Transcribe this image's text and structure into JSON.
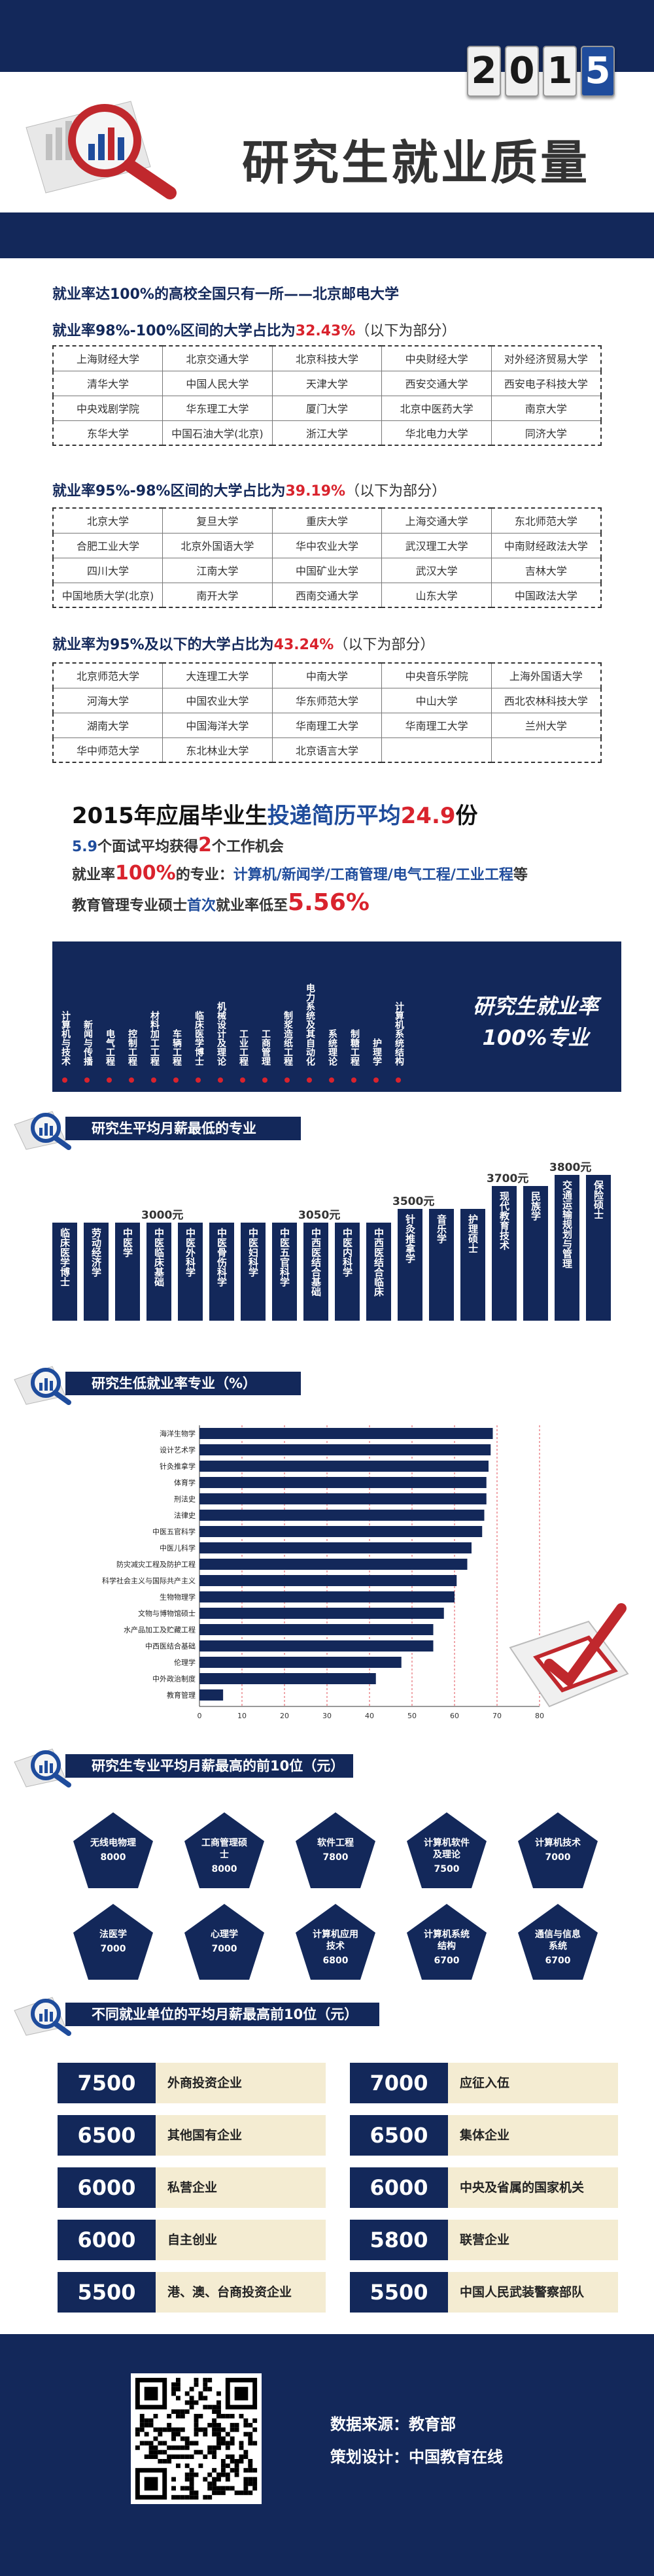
{
  "header": {
    "year_digits": [
      "2",
      "0",
      "1",
      "5"
    ],
    "title": "研究生就业质量"
  },
  "intro": {
    "line1": "就业率达100%的高校全国只有一所——北京邮电大学",
    "sec1_prefix": "就业率98%-100%区间的大学占比为",
    "sec1_pct": "32.43%",
    "sec1_suffix": "（以下为部分）",
    "sec1_rows": [
      [
        "上海财经大学",
        "北京交通大学",
        "北京科技大学",
        "中央财经大学",
        "对外经济贸易大学"
      ],
      [
        "清华大学",
        "中国人民大学",
        "天津大学",
        "西安交通大学",
        "西安电子科技大学"
      ],
      [
        "中央戏剧学院",
        "华东理工大学",
        "厦门大学",
        "北京中医药大学",
        "南京大学"
      ],
      [
        "东华大学",
        "中国石油大学(北京)",
        "浙江大学",
        "华北电力大学",
        "同济大学"
      ]
    ],
    "sec2_prefix": "就业率95%-98%区间的大学占比为",
    "sec2_pct": "39.19%",
    "sec2_suffix": "（以下为部分）",
    "sec2_rows": [
      [
        "北京大学",
        "复旦大学",
        "重庆大学",
        "上海交通大学",
        "东北师范大学"
      ],
      [
        "合肥工业大学",
        "北京外国语大学",
        "华中农业大学",
        "武汉理工大学",
        "中南财经政法大学"
      ],
      [
        "四川大学",
        "江南大学",
        "中国矿业大学",
        "武汉大学",
        "吉林大学"
      ],
      [
        "中国地质大学(北京)",
        "南开大学",
        "西南交通大学",
        "山东大学",
        "中国政法大学"
      ]
    ],
    "sec3_prefix": "就业率为95%及以下的大学占比为",
    "sec3_pct": "43.24%",
    "sec3_suffix": "（以下为部分）",
    "sec3_rows": [
      [
        "北京师范大学",
        "大连理工大学",
        "中南大学",
        "中央音乐学院",
        "上海外国语大学"
      ],
      [
        "河海大学",
        "中国农业大学",
        "华东师范大学",
        "中山大学",
        "西北农林科技大学"
      ],
      [
        "湖南大学",
        "中国海洋大学",
        "华南理工大学",
        "华南理工大学",
        "兰州大学"
      ],
      [
        "华中师范大学",
        "东北林业大学",
        "北京语言大学",
        "",
        ""
      ]
    ]
  },
  "stats": {
    "line1_a": "2015年应届毕业生",
    "line1_b": "投递简历平均",
    "line1_c": "24.9",
    "line1_d": "份",
    "line2_a": "5.9",
    "line2_b": "个面试平均获得",
    "line2_c": "2",
    "line2_d": "个工作机会",
    "line3_a": "就业率",
    "line3_b": "100%",
    "line3_c": "的专业：",
    "line3_d": "计算机/新闻学/工商管理/电气工程/工业工程",
    "line3_e": "等",
    "line4_a": "教育管理专业硕士",
    "line4_b": "首次",
    "line4_c": "就业率低至",
    "line4_d": "5.56%"
  },
  "majors": {
    "label_line1": "研究生就业率",
    "label_line2": "100%专业",
    "items": [
      "计算机与技术",
      "新闻与传播",
      "电气工程",
      "控制工程",
      "材料加工工程",
      "车辆工程",
      "临床医学博士",
      "机械设计及理论",
      "工业工程",
      "工商管理",
      "制浆造纸工程",
      "电力系统及其自动化",
      "系统理论",
      "制糖工程",
      "护理学",
      "计算机系统结构"
    ]
  },
  "low_salary": {
    "title": "研究生平均月薪最低的专业",
    "bars": [
      {
        "label": "临床医学博士",
        "value": 2800
      },
      {
        "label": "劳动经济学",
        "value": 2800
      },
      {
        "label": "中医学",
        "value": 2800
      },
      {
        "label": "中医临床基础",
        "value": 3000
      },
      {
        "label": "中医外科学",
        "value": 3000
      },
      {
        "label": "中医骨伤科学",
        "value": 3000
      },
      {
        "label": "中医妇科学",
        "value": 3000
      },
      {
        "label": "中医五官科学",
        "value": 3000
      },
      {
        "label": "中西医结合基础",
        "value": 3050
      },
      {
        "label": "中医内科学",
        "value": 3300
      },
      {
        "label": "中西医结合临床",
        "value": 3300
      },
      {
        "label": "针灸推拿学",
        "value": 3500
      },
      {
        "label": "音乐学",
        "value": 3500
      },
      {
        "label": "护理硕士",
        "value": 3500
      },
      {
        "label": "现代教育技术",
        "value": 3700
      },
      {
        "label": "民族学",
        "value": 3700
      },
      {
        "label": "交通运输规划与管理",
        "value": 3800
      },
      {
        "label": "保险硕士",
        "value": 3800
      }
    ],
    "value_labels": [
      "3000元",
      "3050元",
      "3500元",
      "3700元",
      "3800元"
    ]
  },
  "chart_data": {
    "type": "bar",
    "title": "研究生低就业率专业（%）",
    "orientation": "horizontal",
    "categories": [
      "海洋生物学",
      "设计艺术学",
      "针灸推拿学",
      "体育学",
      "刑法史",
      "法律史",
      "中医五官科学",
      "中医儿科学",
      "防灾减灾工程及防护工程",
      "科学社会主义与国际共产主义",
      "生物物理学",
      "文物与博物馆硕士",
      "水产品加工及贮藏工程",
      "中西医结合基础",
      "伦理学",
      "中外政治制度",
      "教育管理"
    ],
    "values": [
      69,
      68.5,
      68,
      67.5,
      67.5,
      67,
      66.5,
      64,
      63,
      60.5,
      60,
      57.5,
      55,
      55,
      47.5,
      41.5,
      5.56
    ],
    "xlim": [
      0,
      80
    ],
    "xticks": [
      0,
      10,
      20,
      30,
      40,
      50,
      60,
      70,
      80
    ]
  },
  "high_salary": {
    "title": "研究生专业平均月薪最高的前10位（元）",
    "items": [
      {
        "name": "无线电物理",
        "value": "8000"
      },
      {
        "name": "工商管理硕士",
        "value": "8000"
      },
      {
        "name": "软件工程",
        "value": "7800"
      },
      {
        "name": "计算机软件及理论",
        "value": "7500"
      },
      {
        "name": "计算机技术",
        "value": "7000"
      },
      {
        "name": "法医学",
        "value": "7000"
      },
      {
        "name": "心理学",
        "value": "7000"
      },
      {
        "name": "计算机应用技术",
        "value": "6800"
      },
      {
        "name": "计算机系统结构",
        "value": "6700"
      },
      {
        "name": "通信与信息系统",
        "value": "6700"
      }
    ]
  },
  "units": {
    "title": "不同就业单位的平均月薪最高前10位（元）",
    "items": [
      {
        "num": "7500",
        "name": "外商投资企业"
      },
      {
        "num": "7000",
        "name": "应征入伍"
      },
      {
        "num": "6500",
        "name": "其他国有企业"
      },
      {
        "num": "6500",
        "name": "集体企业"
      },
      {
        "num": "6000",
        "name": "私营企业"
      },
      {
        "num": "6000",
        "name": "中央及省属的国家机关"
      },
      {
        "num": "6000",
        "name": "自主创业"
      },
      {
        "num": "5800",
        "name": "联营企业"
      },
      {
        "num": "5500",
        "name": "港、澳、台商投资企业"
      },
      {
        "num": "5500",
        "name": "中国人民武装警察部队"
      }
    ]
  },
  "footer": {
    "source": "数据来源：教育部",
    "design": "策划设计：中国教育在线"
  },
  "colors": {
    "navy": "#13285a",
    "red": "#d9232d",
    "blue": "#1f4c9c",
    "beige": "#f4ecd2"
  }
}
